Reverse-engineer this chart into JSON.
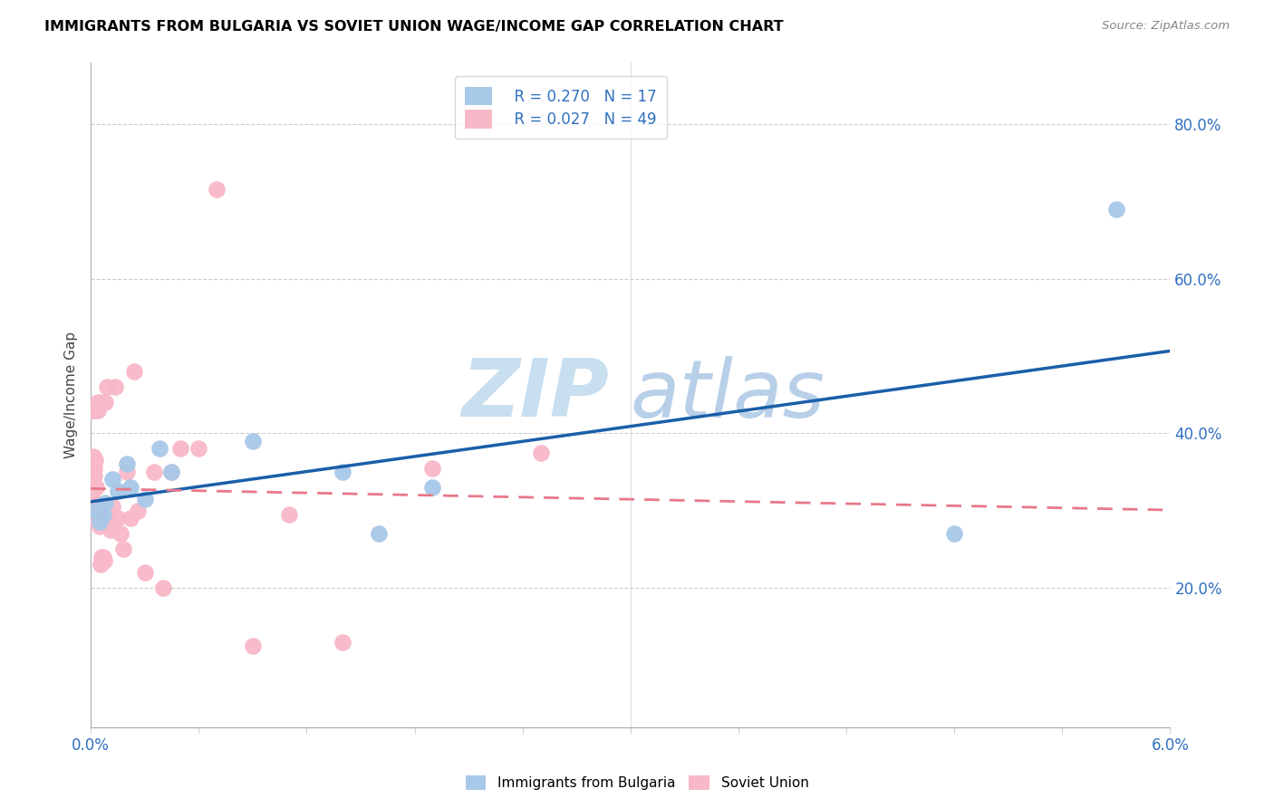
{
  "title": "IMMIGRANTS FROM BULGARIA VS SOVIET UNION WAGE/INCOME GAP CORRELATION CHART",
  "source": "Source: ZipAtlas.com",
  "ylabel": "Wage/Income Gap",
  "ytick_labels": [
    "20.0%",
    "40.0%",
    "60.0%",
    "80.0%"
  ],
  "ytick_vals": [
    0.2,
    0.4,
    0.6,
    0.8
  ],
  "xmin": 0.0,
  "xmax": 0.06,
  "ymin": 0.02,
  "ymax": 0.88,
  "legend_r_bulgaria": "R = 0.270",
  "legend_n_bulgaria": "N = 17",
  "legend_r_soviet": "R = 0.027",
  "legend_n_soviet": "N = 49",
  "color_bulgaria": "#a8c8e8",
  "color_soviet": "#f8b8c8",
  "color_line_bulgaria": "#1a5fa8",
  "color_line_soviet": "#e87888",
  "color_axis_text": "#3070c0",
  "bulgaria_x": [
    0.0003,
    0.0005,
    0.0007,
    0.0008,
    0.0012,
    0.0015,
    0.002,
    0.0022,
    0.003,
    0.0038,
    0.0045,
    0.009,
    0.014,
    0.016,
    0.019,
    0.048,
    0.057
  ],
  "bulgaria_y": [
    0.3,
    0.285,
    0.295,
    0.31,
    0.34,
    0.325,
    0.36,
    0.33,
    0.315,
    0.38,
    0.35,
    0.39,
    0.35,
    0.27,
    0.33,
    0.27,
    0.69
  ],
  "soviet_x": [
    5e-05,
    8e-05,
    0.0001,
    0.00012,
    0.00015,
    0.00018,
    0.0002,
    0.00022,
    0.00025,
    0.00028,
    0.0003,
    0.00032,
    0.00035,
    0.00038,
    0.0004,
    0.00042,
    0.00045,
    0.00048,
    0.0005,
    0.00055,
    0.0006,
    0.00065,
    0.0007,
    0.00075,
    0.0008,
    0.0009,
    0.001,
    0.0011,
    0.0012,
    0.00135,
    0.0015,
    0.00165,
    0.0018,
    0.002,
    0.0022,
    0.0024,
    0.0026,
    0.003,
    0.0035,
    0.004,
    0.0045,
    0.005,
    0.006,
    0.007,
    0.009,
    0.011,
    0.014,
    0.019,
    0.025
  ],
  "soviet_y": [
    0.295,
    0.31,
    0.35,
    0.43,
    0.37,
    0.43,
    0.355,
    0.345,
    0.365,
    0.33,
    0.31,
    0.31,
    0.295,
    0.285,
    0.44,
    0.43,
    0.295,
    0.285,
    0.28,
    0.23,
    0.24,
    0.235,
    0.24,
    0.235,
    0.44,
    0.46,
    0.29,
    0.275,
    0.305,
    0.46,
    0.29,
    0.27,
    0.25,
    0.35,
    0.29,
    0.48,
    0.3,
    0.22,
    0.35,
    0.2,
    0.35,
    0.38,
    0.38,
    0.715,
    0.125,
    0.295,
    0.13,
    0.355,
    0.375
  ],
  "watermark_zip": "ZIP",
  "watermark_atlas": "atlas",
  "watermark_color_zip": "#c8dff0",
  "watermark_color_atlas": "#b8cfe8",
  "footer_label_bulgaria": "Immigrants from Bulgaria",
  "footer_label_soviet": "Soviet Union",
  "num_xticks": 10
}
